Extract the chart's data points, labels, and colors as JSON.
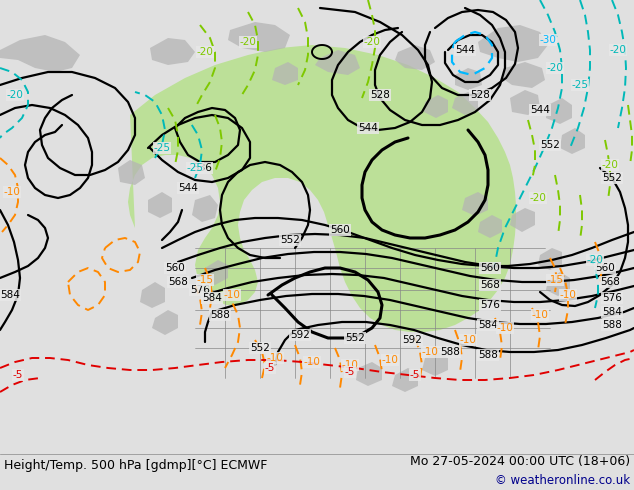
{
  "title_left": "Height/Temp. 500 hPa [gdmp][°C] ECMWF",
  "title_right": "Mo 27-05-2024 00:00 UTC (18+06)",
  "copyright": "© weatheronline.co.uk",
  "bg_color": "#e0e0e0",
  "map_bg": "#e0e0e0",
  "ocean_color": "#e8e8e8",
  "green_fill": "#b8e090",
  "gray_land": "#b4b4b4",
  "title_color": "#000000",
  "copyright_color": "#00008b",
  "label_fontsize": 7.5,
  "title_fontsize": 9,
  "copyright_fontsize": 8.5,
  "black_lw": 1.6,
  "thick_lw": 2.2,
  "temp_lw": 1.4
}
